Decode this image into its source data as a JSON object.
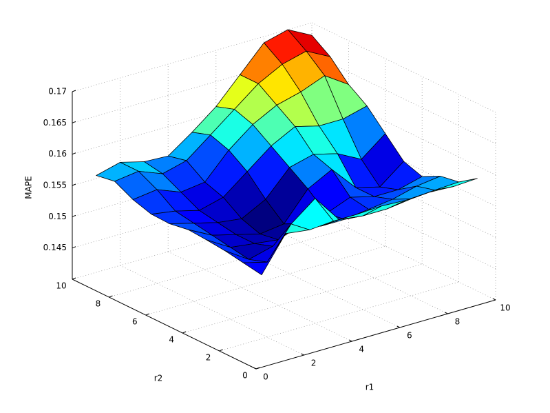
{
  "chart_data": {
    "type": "surface",
    "xlabel": "r1",
    "ylabel": "r2",
    "zlabel": "MAPE",
    "x": [
      1,
      2,
      3,
      4,
      5,
      6,
      7,
      8,
      9,
      10
    ],
    "y": [
      1,
      2,
      3,
      4,
      5,
      6,
      7,
      8,
      9,
      10
    ],
    "z": [
      [
        0.1525,
        0.158,
        0.1575,
        0.1578,
        0.1578,
        0.158,
        0.1578,
        0.158,
        0.1578,
        0.158
      ],
      [
        0.153,
        0.152,
        0.157,
        0.16,
        0.1555,
        0.155,
        0.155,
        0.1555,
        0.1558,
        0.156
      ],
      [
        0.1535,
        0.151,
        0.152,
        0.1545,
        0.153,
        0.153,
        0.1535,
        0.154,
        0.155,
        0.1555
      ],
      [
        0.1538,
        0.1515,
        0.151,
        0.1505,
        0.152,
        0.1525,
        0.154,
        0.153,
        0.153,
        0.154
      ],
      [
        0.154,
        0.152,
        0.151,
        0.15,
        0.1505,
        0.155,
        0.157,
        0.153,
        0.152,
        0.155
      ],
      [
        0.1535,
        0.1525,
        0.1515,
        0.151,
        0.153,
        0.157,
        0.158,
        0.157,
        0.155,
        0.158
      ],
      [
        0.1536,
        0.153,
        0.152,
        0.153,
        0.156,
        0.159,
        0.161,
        0.16,
        0.16,
        0.161
      ],
      [
        0.1545,
        0.155,
        0.1535,
        0.154,
        0.158,
        0.161,
        0.163,
        0.164,
        0.1655,
        0.163
      ],
      [
        0.156,
        0.1565,
        0.155,
        0.156,
        0.159,
        0.162,
        0.165,
        0.167,
        0.168,
        0.166
      ],
      [
        0.1555,
        0.1565,
        0.1555,
        0.1553,
        0.158,
        0.161,
        0.165,
        0.169,
        0.17,
        0.168
      ]
    ],
    "xlim": [
      0,
      10
    ],
    "ylim": [
      0,
      10
    ],
    "zlim": [
      0.14,
      0.17
    ],
    "xticks": [
      0,
      2,
      4,
      6,
      8,
      10
    ],
    "yticks": [
      0,
      2,
      4,
      6,
      8,
      10
    ],
    "zticks": [
      0.145,
      0.15,
      0.155,
      0.16,
      0.165,
      0.17
    ],
    "grid": true,
    "colormap": "jet",
    "edge_color": "#000000"
  }
}
